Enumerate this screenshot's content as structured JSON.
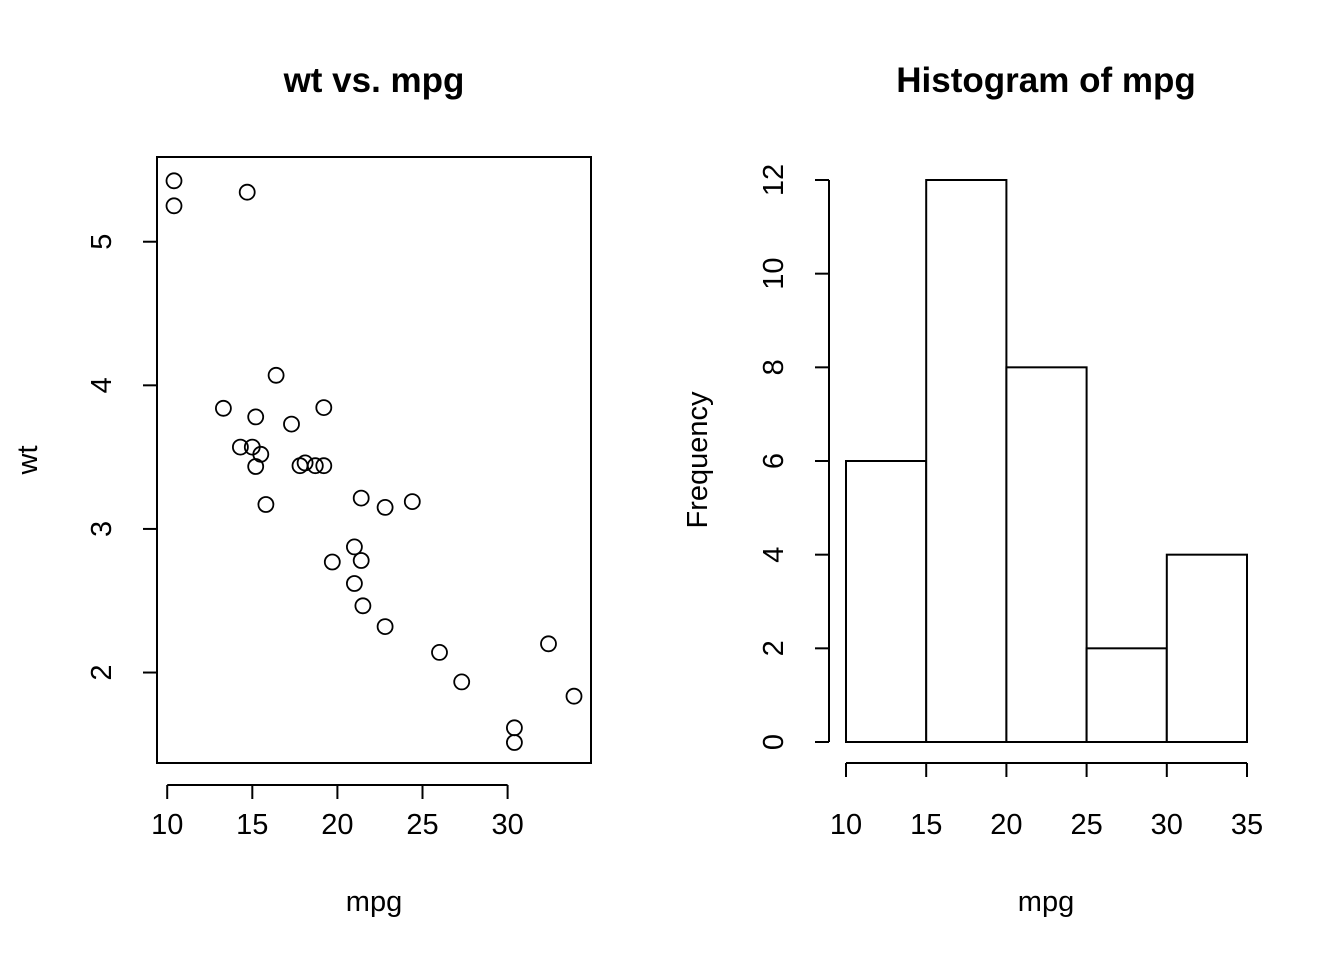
{
  "chart_data": [
    {
      "type": "scatter",
      "title": "wt vs. mpg",
      "xlabel": "mpg",
      "ylabel": "wt",
      "xlim": [
        9.4,
        34.9
      ],
      "ylim": [
        1.37,
        5.59
      ],
      "xticks": [
        10,
        15,
        20,
        25,
        30
      ],
      "yticks": [
        2,
        3,
        4,
        5
      ],
      "points": [
        {
          "x": 21.0,
          "y": 2.62
        },
        {
          "x": 21.0,
          "y": 2.875
        },
        {
          "x": 22.8,
          "y": 2.32
        },
        {
          "x": 21.4,
          "y": 3.215
        },
        {
          "x": 18.7,
          "y": 3.44
        },
        {
          "x": 18.1,
          "y": 3.46
        },
        {
          "x": 14.3,
          "y": 3.57
        },
        {
          "x": 24.4,
          "y": 3.19
        },
        {
          "x": 22.8,
          "y": 3.15
        },
        {
          "x": 19.2,
          "y": 3.44
        },
        {
          "x": 17.8,
          "y": 3.44
        },
        {
          "x": 16.4,
          "y": 4.07
        },
        {
          "x": 17.3,
          "y": 3.73
        },
        {
          "x": 15.2,
          "y": 3.78
        },
        {
          "x": 10.4,
          "y": 5.25
        },
        {
          "x": 10.4,
          "y": 5.424
        },
        {
          "x": 14.7,
          "y": 5.345
        },
        {
          "x": 32.4,
          "y": 2.2
        },
        {
          "x": 30.4,
          "y": 1.615
        },
        {
          "x": 33.9,
          "y": 1.835
        },
        {
          "x": 21.5,
          "y": 2.465
        },
        {
          "x": 15.5,
          "y": 3.52
        },
        {
          "x": 15.2,
          "y": 3.435
        },
        {
          "x": 13.3,
          "y": 3.84
        },
        {
          "x": 19.2,
          "y": 3.845
        },
        {
          "x": 27.3,
          "y": 1.935
        },
        {
          "x": 26.0,
          "y": 2.14
        },
        {
          "x": 30.4,
          "y": 1.513
        },
        {
          "x": 15.8,
          "y": 3.17
        },
        {
          "x": 19.7,
          "y": 2.77
        },
        {
          "x": 15.0,
          "y": 3.57
        },
        {
          "x": 21.4,
          "y": 2.78
        }
      ]
    },
    {
      "type": "bar",
      "title": "Histogram of mpg",
      "xlabel": "mpg",
      "ylabel": "Frequency",
      "bins": [
        {
          "from": 10,
          "to": 15,
          "count": 6
        },
        {
          "from": 15,
          "to": 20,
          "count": 12
        },
        {
          "from": 20,
          "to": 25,
          "count": 8
        },
        {
          "from": 25,
          "to": 30,
          "count": 2
        },
        {
          "from": 30,
          "to": 35,
          "count": 4
        }
      ],
      "xticks": [
        10,
        15,
        20,
        25,
        30,
        35
      ],
      "yticks": [
        0,
        2,
        4,
        6,
        8,
        10,
        12
      ],
      "ylim": [
        0,
        12.46
      ]
    }
  ]
}
